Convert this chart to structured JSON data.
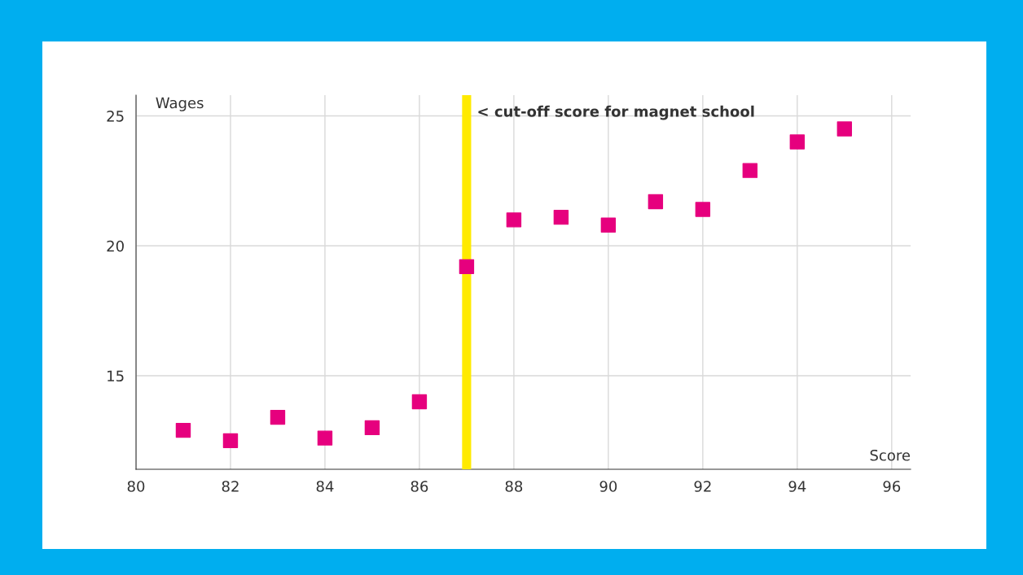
{
  "chart_data": {
    "type": "scatter",
    "xlabel": "Score",
    "ylabel": "Wages",
    "x": [
      81,
      82,
      83,
      84,
      85,
      86,
      87,
      88,
      89,
      90,
      91,
      92,
      93,
      94,
      95
    ],
    "series": [
      {
        "color": "#e6007e",
        "values": [
          12.9,
          12.5,
          13.4,
          12.6,
          13.0,
          14.0,
          19.2,
          21.0,
          21.1,
          20.8,
          21.7,
          21.4,
          22.9,
          24.0,
          24.5
        ]
      }
    ],
    "xlim": [
      80,
      96.4
    ],
    "ylim": [
      11.4,
      25.8
    ],
    "xticks": [
      80,
      82,
      84,
      86,
      88,
      90,
      92,
      94,
      96
    ],
    "yticks": [
      15,
      20,
      25
    ],
    "ref_lines": [
      {
        "axis": "x",
        "value": 87,
        "label": "< cut-off score for magnet school",
        "color": "#ffea00"
      }
    ],
    "grid": true,
    "marker": "square",
    "legend": false
  }
}
